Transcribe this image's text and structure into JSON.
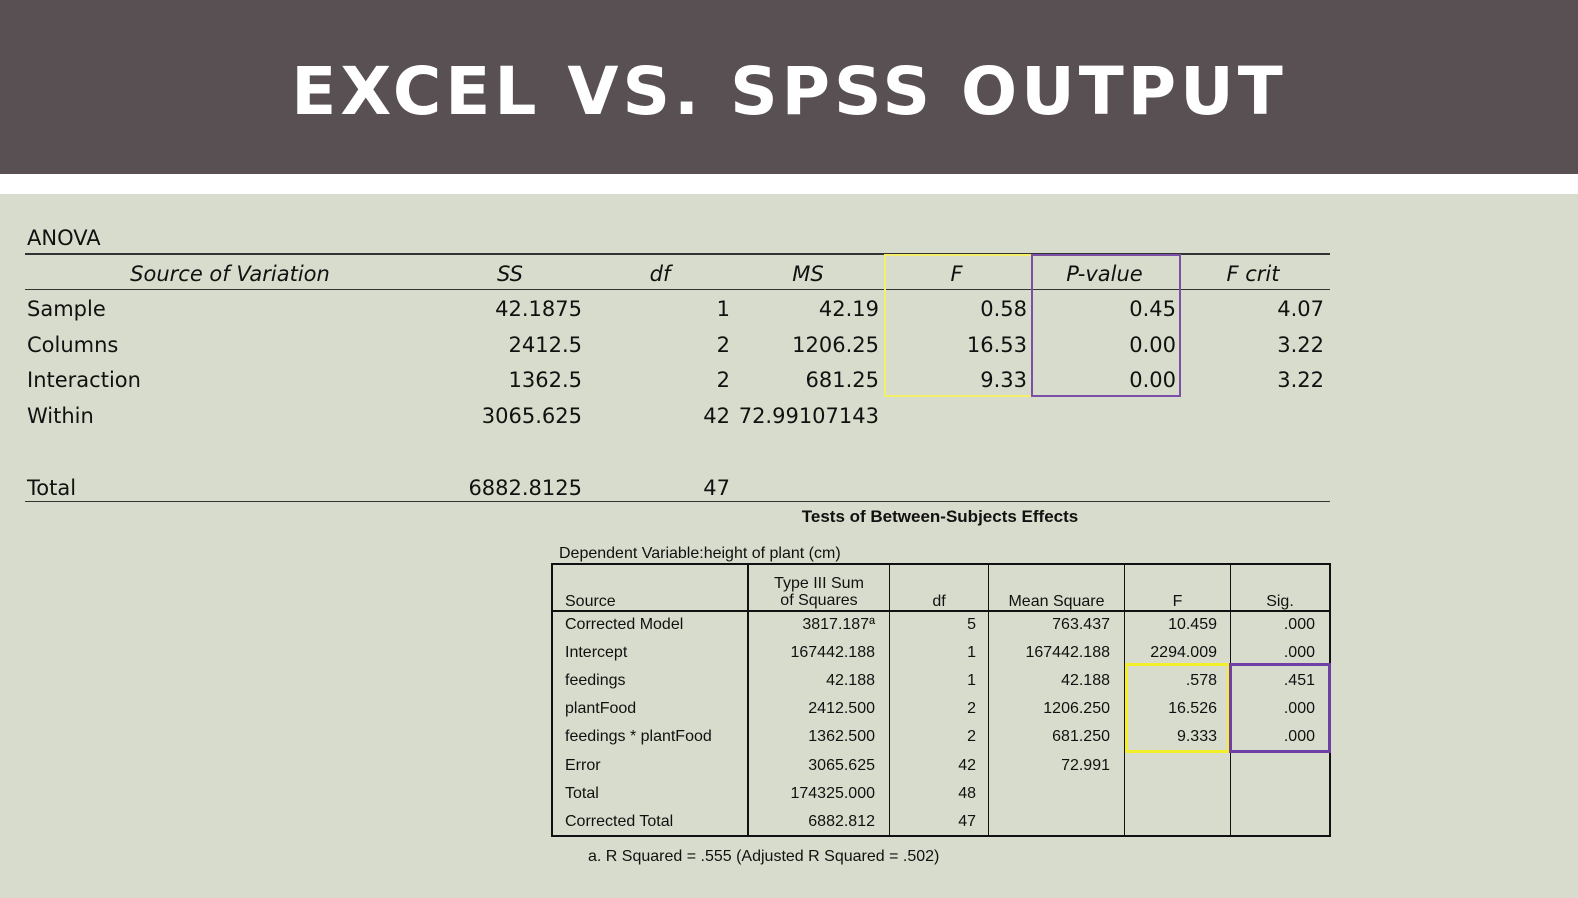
{
  "slide_title": "EXCEL VS. SPSS OUTPUT",
  "excel": {
    "title": "ANOVA",
    "headers": [
      "Source of Variation",
      "SS",
      "df",
      "MS",
      "F",
      "P-value",
      "F crit"
    ],
    "rows": [
      [
        "Sample",
        "42.1875",
        "1",
        "42.19",
        "0.58",
        "0.45",
        "4.07"
      ],
      [
        "Columns",
        "2412.5",
        "2",
        "1206.25",
        "16.53",
        "0.00",
        "3.22"
      ],
      [
        "Interaction",
        "1362.5",
        "2",
        "681.25",
        "9.33",
        "0.00",
        "3.22"
      ],
      [
        "Within",
        "3065.625",
        "42",
        "72.99107143",
        "",
        "",
        ""
      ],
      [
        "",
        "",
        "",
        "",
        "",
        "",
        ""
      ],
      [
        "Total",
        "6882.8125",
        "47",
        "",
        "",
        "",
        ""
      ]
    ]
  },
  "spss": {
    "title": "Tests of Between-Subjects Effects",
    "dependent_variable": "Dependent Variable:height of plant (cm)",
    "headers": [
      "Source",
      "Type III Sum of Squares",
      "df",
      "Mean Square",
      "F",
      "Sig."
    ],
    "header_lines": {
      "ss_line1": "Type III Sum",
      "ss_line2": "of Squares"
    },
    "rows": [
      [
        "Corrected Model",
        "3817.187ª",
        "5",
        "763.437",
        "10.459",
        ".000"
      ],
      [
        "Intercept",
        "167442.188",
        "1",
        "167442.188",
        "2294.009",
        ".000"
      ],
      [
        "feedings",
        "42.188",
        "1",
        "42.188",
        ".578",
        ".451"
      ],
      [
        "plantFood",
        "2412.500",
        "2",
        "1206.250",
        "16.526",
        ".000"
      ],
      [
        "feedings * plantFood",
        "1362.500",
        "2",
        "681.250",
        "9.333",
        ".000"
      ],
      [
        "Error",
        "3065.625",
        "42",
        "72.991",
        "",
        ""
      ],
      [
        "Total",
        "174325.000",
        "48",
        "",
        "",
        ""
      ],
      [
        "Corrected Total",
        "6882.812",
        "47",
        "",
        "",
        ""
      ]
    ],
    "footnote": "a. R Squared = .555 (Adjusted R Squared = .502)"
  },
  "highlight_colors": {
    "f_box": "#f4ef2a",
    "p_box": "#6f3fa6"
  }
}
